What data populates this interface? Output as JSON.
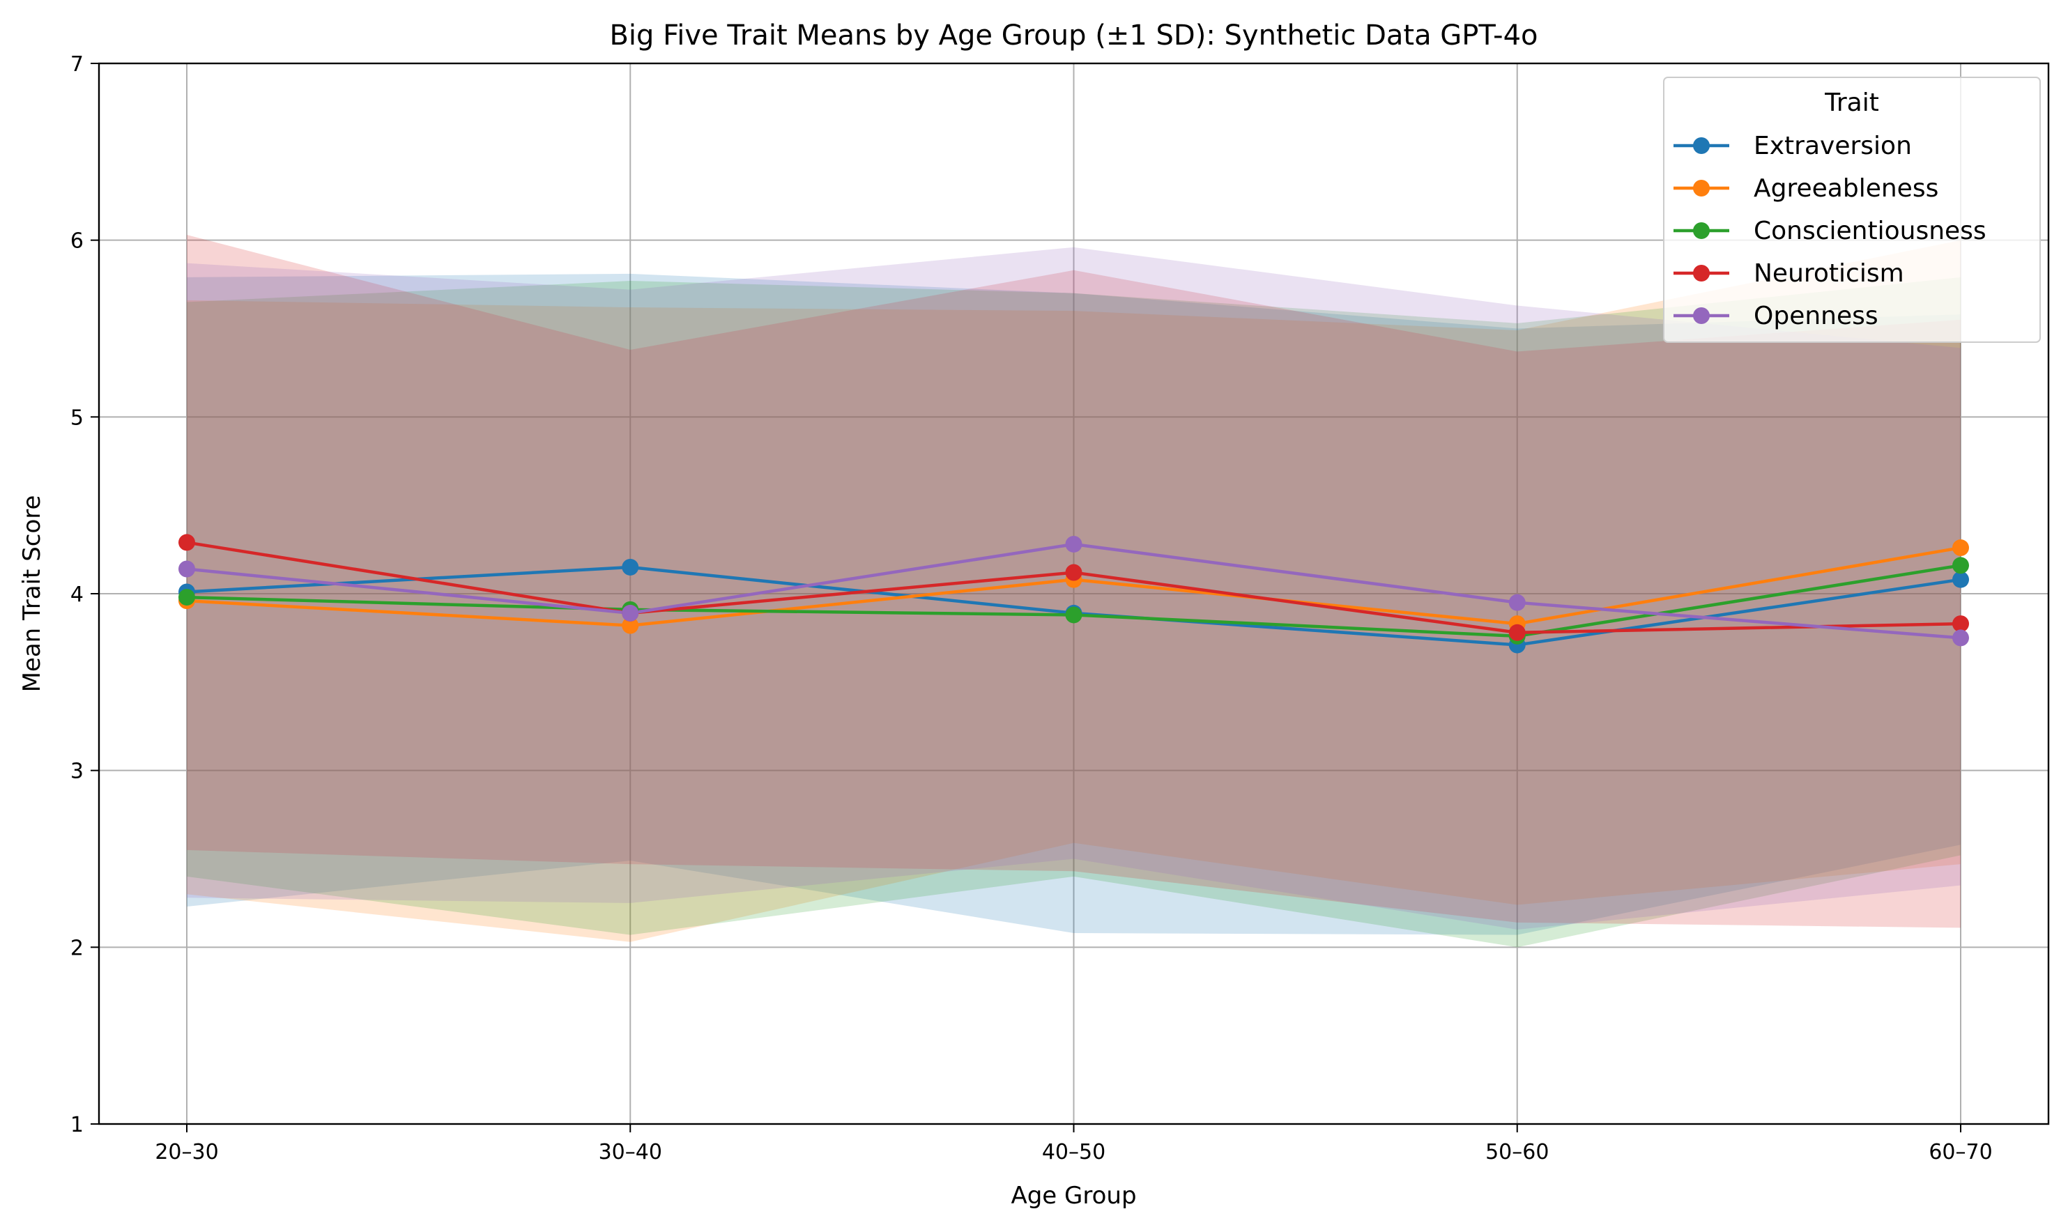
{
  "chart_data": {
    "type": "line",
    "title": "Big Five Trait Means by Age Group (±1 SD): Synthetic Data GPT-4o",
    "xlabel": "Age Group",
    "ylabel": "Mean Trait Score",
    "categories": [
      "20–30",
      "30–40",
      "40–50",
      "50–60",
      "60–70"
    ],
    "ylim": [
      1,
      7
    ],
    "yticks": [
      "1",
      "2",
      "3",
      "4",
      "5",
      "6",
      "7"
    ],
    "grid": true,
    "legend": {
      "title": "Trait",
      "placement": "top-right"
    },
    "series": [
      {
        "name": "Extraversion",
        "color": "#1f77b4",
        "values": [
          4.01,
          4.15,
          3.89,
          3.71,
          4.08
        ],
        "upper": [
          5.79,
          5.81,
          5.7,
          5.5,
          5.58
        ],
        "lower": [
          2.23,
          2.49,
          2.08,
          2.07,
          2.58
        ]
      },
      {
        "name": "Agreeableness",
        "color": "#ff7f0e",
        "values": [
          3.96,
          3.82,
          4.08,
          3.83,
          4.26
        ],
        "upper": [
          5.66,
          5.62,
          5.6,
          5.49,
          6.0
        ],
        "lower": [
          2.3,
          2.03,
          2.59,
          2.24,
          2.47
        ]
      },
      {
        "name": "Conscientiousness",
        "color": "#2ca02c",
        "values": [
          3.98,
          3.91,
          3.88,
          3.76,
          4.16
        ],
        "upper": [
          5.65,
          5.77,
          5.7,
          5.53,
          5.79
        ],
        "lower": [
          2.4,
          2.07,
          2.4,
          2.0,
          2.52
        ]
      },
      {
        "name": "Neuroticism",
        "color": "#d62728",
        "values": [
          4.29,
          3.89,
          4.12,
          3.78,
          3.83
        ],
        "upper": [
          6.03,
          5.38,
          5.83,
          5.37,
          5.55
        ],
        "lower": [
          2.55,
          2.47,
          2.43,
          2.14,
          2.11
        ]
      },
      {
        "name": "Openness",
        "color": "#9467bd",
        "values": [
          4.14,
          3.89,
          4.28,
          3.95,
          3.75
        ],
        "upper": [
          5.87,
          5.72,
          5.96,
          5.63,
          5.39
        ],
        "lower": [
          2.28,
          2.25,
          2.5,
          2.1,
          2.35
        ]
      }
    ]
  }
}
